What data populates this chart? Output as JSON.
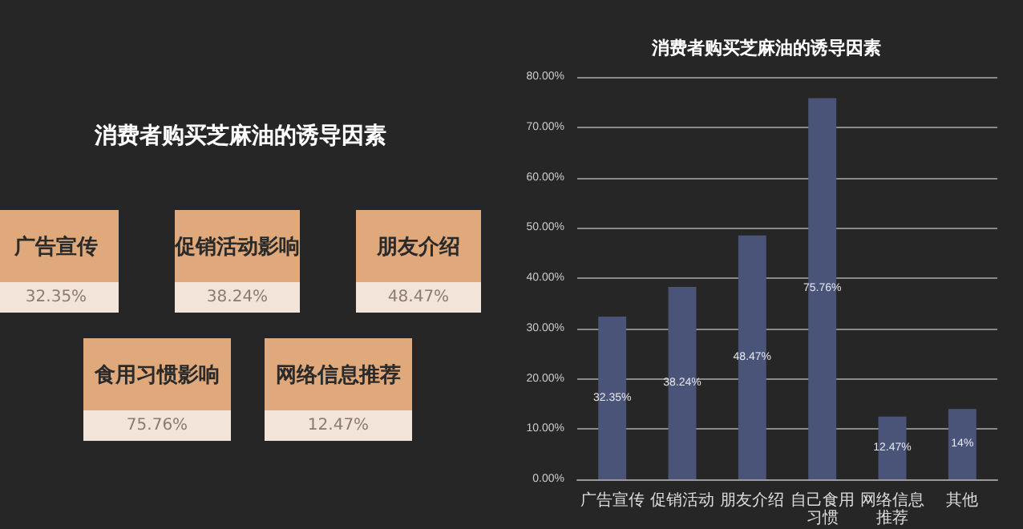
{
  "chart_data": [
    {
      "type": "other",
      "title": "消费者购买芝麻油的诱导因素",
      "annotations": [
        "广告宣传",
        "32.35%",
        "促销活动影响",
        "38.24%",
        "朋友介绍",
        "48.47%",
        "食用习惯影响",
        "75.76%",
        "网络信息推荐",
        "12.47%"
      ]
    },
    {
      "type": "bar",
      "title": "消费者购买芝麻油的诱导因素",
      "categories": [
        "广告宣传",
        "促销活动",
        "朋友介绍",
        "自己食用习惯",
        "网络信息推荐",
        "其他"
      ],
      "values": [
        32.35,
        38.24,
        48.47,
        75.76,
        12.47,
        14
      ],
      "value_labels": [
        "32.35%",
        "38.24%",
        "48.47%",
        "75.76%",
        "12.47%",
        "14%"
      ],
      "color": "#4a5478",
      "ylim": [
        0,
        80
      ],
      "yticks": [
        {
          "value": 0,
          "label": "0.00%"
        },
        {
          "value": 10,
          "label": "10.00%"
        },
        {
          "value": 20,
          "label": "20.00%"
        },
        {
          "value": 30,
          "label": "30.00%"
        },
        {
          "value": 40,
          "label": "40.00%"
        },
        {
          "value": 50,
          "label": "50.00%"
        },
        {
          "value": 60,
          "label": "60.00%"
        },
        {
          "value": 70,
          "label": "70.00%"
        },
        {
          "value": 80,
          "label": "80.00%"
        }
      ],
      "grid": "y"
    }
  ]
}
